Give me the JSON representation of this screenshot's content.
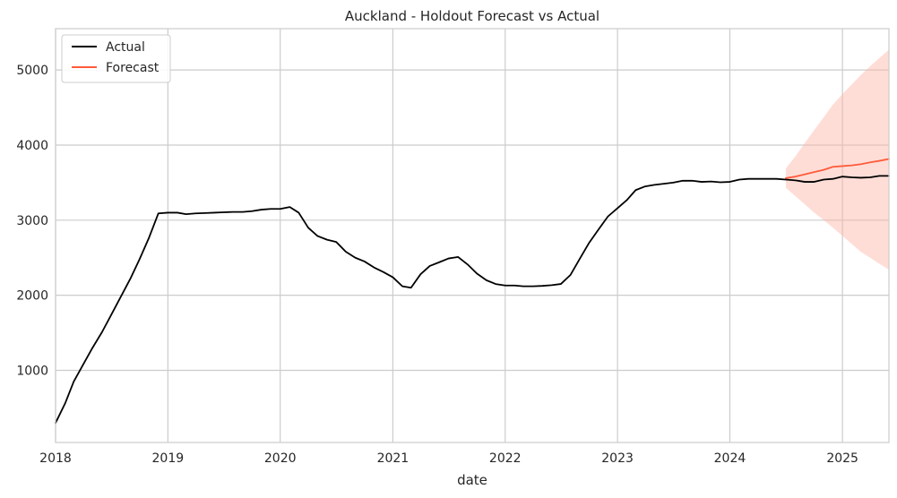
{
  "chart_data": {
    "type": "line",
    "title": "Auckland - Holdout Forecast vs Actual",
    "xlabel": "date",
    "ylabel": "",
    "x_range": [
      "2018-01-01",
      "2025-06-01"
    ],
    "ylim": [
      40,
      5550
    ],
    "x_ticks": [
      {
        "label": "2018",
        "date": "2018-01-01"
      },
      {
        "label": "2019",
        "date": "2019-01-01"
      },
      {
        "label": "2020",
        "date": "2020-01-01"
      },
      {
        "label": "2021",
        "date": "2021-01-01"
      },
      {
        "label": "2022",
        "date": "2022-01-01"
      },
      {
        "label": "2023",
        "date": "2023-01-01"
      },
      {
        "label": "2024",
        "date": "2024-01-01"
      },
      {
        "label": "2025",
        "date": "2025-01-01"
      }
    ],
    "y_ticks": [
      {
        "label": "1000",
        "value": 1000
      },
      {
        "label": "2000",
        "value": 2000
      },
      {
        "label": "3000",
        "value": 3000
      },
      {
        "label": "4000",
        "value": 4000
      },
      {
        "label": "5000",
        "value": 5000
      }
    ],
    "grid": true,
    "legend_position": "top-left",
    "colors": {
      "actual": "#000000",
      "forecast": "#ff5b3a",
      "band": "#ffb4a6",
      "grid": "#cccccc",
      "spine": "#cccccc"
    },
    "series": [
      {
        "name": "Actual",
        "color": "#000000",
        "points": [
          [
            "2018-01-01",
            300
          ],
          [
            "2018-02-01",
            560
          ],
          [
            "2018-03-01",
            850
          ],
          [
            "2018-04-01",
            1080
          ],
          [
            "2018-05-01",
            1300
          ],
          [
            "2018-06-01",
            1510
          ],
          [
            "2018-07-01",
            1740
          ],
          [
            "2018-08-01",
            1980
          ],
          [
            "2018-09-01",
            2220
          ],
          [
            "2018-10-01",
            2480
          ],
          [
            "2018-11-01",
            2770
          ],
          [
            "2018-12-01",
            3090
          ],
          [
            "2019-01-01",
            3100
          ],
          [
            "2019-02-01",
            3100
          ],
          [
            "2019-03-01",
            3080
          ],
          [
            "2019-04-01",
            3090
          ],
          [
            "2019-05-01",
            3095
          ],
          [
            "2019-06-01",
            3100
          ],
          [
            "2019-07-01",
            3105
          ],
          [
            "2019-08-01",
            3110
          ],
          [
            "2019-09-01",
            3110
          ],
          [
            "2019-10-01",
            3120
          ],
          [
            "2019-11-01",
            3140
          ],
          [
            "2019-12-01",
            3150
          ],
          [
            "2020-01-01",
            3150
          ],
          [
            "2020-02-01",
            3175
          ],
          [
            "2020-03-01",
            3100
          ],
          [
            "2020-04-01",
            2900
          ],
          [
            "2020-05-01",
            2790
          ],
          [
            "2020-06-01",
            2740
          ],
          [
            "2020-07-01",
            2710
          ],
          [
            "2020-08-01",
            2580
          ],
          [
            "2020-09-01",
            2500
          ],
          [
            "2020-10-01",
            2450
          ],
          [
            "2020-11-01",
            2370
          ],
          [
            "2020-12-01",
            2310
          ],
          [
            "2021-01-01",
            2240
          ],
          [
            "2021-02-01",
            2120
          ],
          [
            "2021-03-01",
            2100
          ],
          [
            "2021-04-01",
            2280
          ],
          [
            "2021-05-01",
            2390
          ],
          [
            "2021-06-01",
            2440
          ],
          [
            "2021-07-01",
            2490
          ],
          [
            "2021-08-01",
            2510
          ],
          [
            "2021-09-01",
            2410
          ],
          [
            "2021-10-01",
            2290
          ],
          [
            "2021-11-01",
            2200
          ],
          [
            "2021-12-01",
            2150
          ],
          [
            "2022-01-01",
            2130
          ],
          [
            "2022-02-01",
            2130
          ],
          [
            "2022-03-01",
            2120
          ],
          [
            "2022-04-01",
            2120
          ],
          [
            "2022-05-01",
            2125
          ],
          [
            "2022-06-01",
            2135
          ],
          [
            "2022-07-01",
            2150
          ],
          [
            "2022-08-01",
            2270
          ],
          [
            "2022-09-01",
            2490
          ],
          [
            "2022-10-01",
            2700
          ],
          [
            "2022-11-01",
            2880
          ],
          [
            "2022-12-01",
            3050
          ],
          [
            "2023-01-01",
            3160
          ],
          [
            "2023-02-01",
            3270
          ],
          [
            "2023-03-01",
            3400
          ],
          [
            "2023-04-01",
            3450
          ],
          [
            "2023-05-01",
            3470
          ],
          [
            "2023-06-01",
            3485
          ],
          [
            "2023-07-01",
            3500
          ],
          [
            "2023-08-01",
            3525
          ],
          [
            "2023-09-01",
            3525
          ],
          [
            "2023-10-01",
            3510
          ],
          [
            "2023-11-01",
            3515
          ],
          [
            "2023-12-01",
            3505
          ],
          [
            "2024-01-01",
            3510
          ],
          [
            "2024-02-01",
            3540
          ],
          [
            "2024-03-01",
            3550
          ],
          [
            "2024-04-01",
            3550
          ],
          [
            "2024-05-01",
            3550
          ],
          [
            "2024-06-01",
            3550
          ],
          [
            "2024-07-01",
            3540
          ],
          [
            "2024-08-01",
            3530
          ],
          [
            "2024-09-01",
            3510
          ],
          [
            "2024-10-01",
            3510
          ],
          [
            "2024-11-01",
            3540
          ],
          [
            "2024-12-01",
            3550
          ],
          [
            "2025-01-01",
            3580
          ],
          [
            "2025-02-01",
            3570
          ],
          [
            "2025-03-01",
            3565
          ],
          [
            "2025-04-01",
            3570
          ],
          [
            "2025-05-01",
            3590
          ],
          [
            "2025-06-01",
            3590
          ]
        ]
      },
      {
        "name": "Forecast",
        "color": "#ff5b3a",
        "points": [
          [
            "2024-07-01",
            3560
          ],
          [
            "2024-08-01",
            3580
          ],
          [
            "2024-09-01",
            3610
          ],
          [
            "2024-10-01",
            3640
          ],
          [
            "2024-11-01",
            3670
          ],
          [
            "2024-12-01",
            3710
          ],
          [
            "2025-01-01",
            3720
          ],
          [
            "2025-02-01",
            3730
          ],
          [
            "2025-03-01",
            3745
          ],
          [
            "2025-04-01",
            3770
          ],
          [
            "2025-05-01",
            3790
          ],
          [
            "2025-06-01",
            3815
          ]
        ],
        "band_upper": [
          3690,
          3850,
          4030,
          4200,
          4370,
          4540,
          4680,
          4810,
          4930,
          5050,
          5160,
          5270
        ],
        "band_lower": [
          3430,
          3320,
          3210,
          3100,
          3000,
          2900,
          2790,
          2680,
          2580,
          2500,
          2420,
          2340
        ]
      }
    ]
  }
}
